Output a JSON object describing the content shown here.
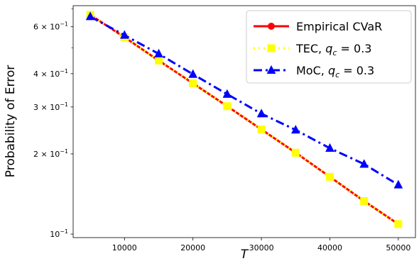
{
  "chart_data": {
    "type": "line",
    "xlabel": "T",
    "ylabel": "Probability of Error",
    "y_scale": "log",
    "xlim": [
      2500,
      52500
    ],
    "ylim": [
      0.097,
      0.72
    ],
    "x_ticks": [
      10000,
      20000,
      30000,
      40000,
      50000
    ],
    "x_tick_labels": [
      "10000",
      "20000",
      "30000",
      "40000",
      "50000"
    ],
    "y_ticks": [
      {
        "value": 0.1,
        "base": "10",
        "exp": "−1",
        "coef": ""
      },
      {
        "value": 0.2,
        "base": "10",
        "exp": "−1",
        "coef": "2 × "
      },
      {
        "value": 0.3,
        "base": "10",
        "exp": "−1",
        "coef": "3 × "
      },
      {
        "value": 0.4,
        "base": "10",
        "exp": "−1",
        "coef": "4 × "
      },
      {
        "value": 0.6,
        "base": "10",
        "exp": "−1",
        "coef": "6 × "
      }
    ],
    "grid": false,
    "legend_position": "top-right",
    "x": [
      5000,
      10000,
      15000,
      20000,
      25000,
      30000,
      35000,
      40000,
      45000,
      50000
    ],
    "series": [
      {
        "name_main": "Empirical CVaR",
        "name_var": "",
        "name_sub": "",
        "name_rest": "",
        "color": "#ff0000",
        "line_style": "solid",
        "marker": "circle",
        "values": [
          0.665,
          0.548,
          0.448,
          0.368,
          0.302,
          0.247,
          0.202,
          0.164,
          0.133,
          0.109
        ]
      },
      {
        "name_main": "TEC, ",
        "name_var": "q",
        "name_sub": "c",
        "name_rest": " = 0.3",
        "color": "#ffff00",
        "line_style": "dotted",
        "marker": "square",
        "values": [
          0.665,
          0.548,
          0.448,
          0.368,
          0.302,
          0.247,
          0.202,
          0.164,
          0.133,
          0.109
        ]
      },
      {
        "name_main": "MoC, ",
        "name_var": "q",
        "name_sub": "c",
        "name_rest": " = 0.3",
        "color": "#0000ff",
        "line_style": "dashdot",
        "marker": "triangle",
        "values": [
          0.655,
          0.558,
          0.475,
          0.398,
          0.335,
          0.283,
          0.246,
          0.21,
          0.183,
          0.153
        ]
      }
    ]
  }
}
